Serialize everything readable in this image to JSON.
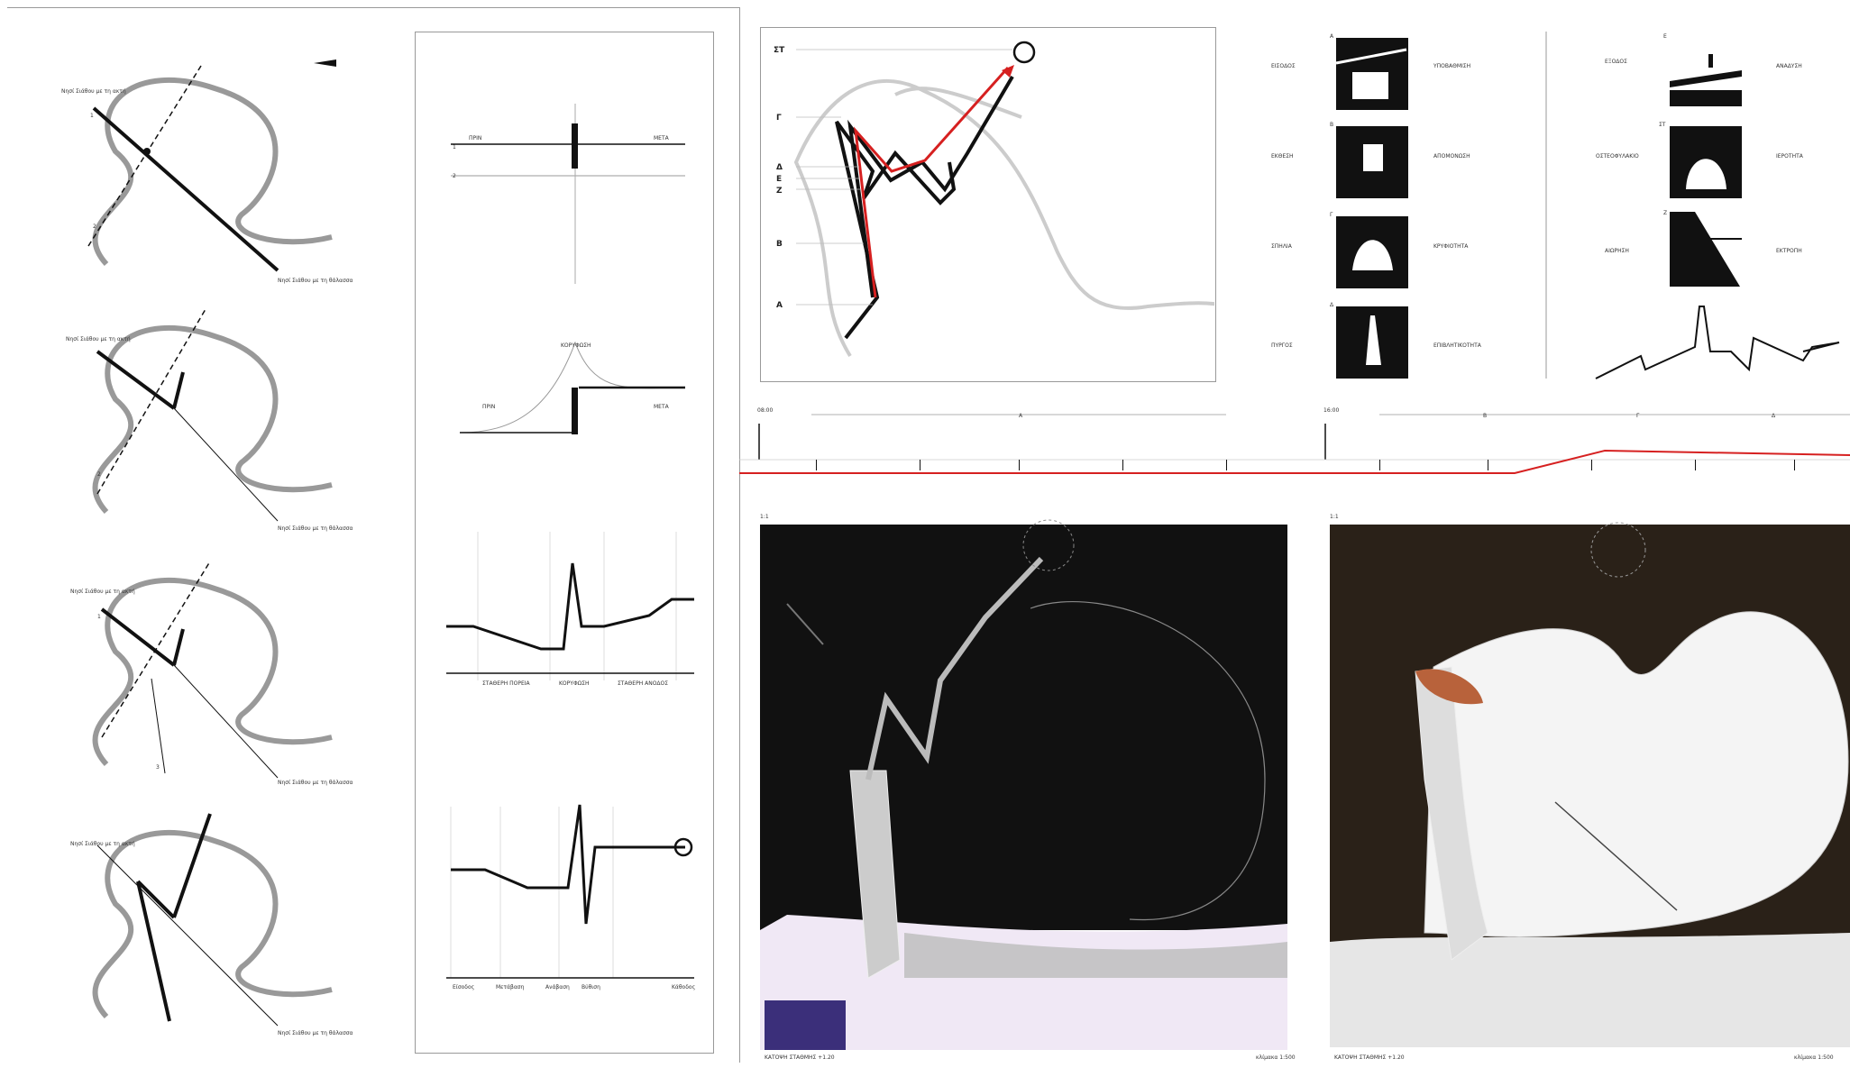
{
  "route_diagram": {
    "stations": [
      "ΣΤ",
      "Γ",
      "Δ",
      "Ε",
      "Ζ",
      "Β",
      "Α"
    ],
    "colors": {
      "route": "#d62020",
      "path": "#111111",
      "terrain": "#cccccc"
    }
  },
  "left_panels": {
    "start_caption": "Νησί Σιάθου με τη ακτή",
    "end_caption": "Νησί Σιάθου με τη θάλασσα",
    "axis_1": "1",
    "axis_2": "2",
    "axis_3": "3"
  },
  "section_diagrams": {
    "top": {
      "before": "ΠΡΙΝ",
      "after": "ΜΕΤΑ"
    },
    "peak": {
      "peak_label": "ΚΟΡΥΦΩΣΗ",
      "before": "ΠΡΙΝ",
      "after": "ΜΕΤΑ"
    },
    "wave": {
      "segments": [
        "ΣΤΑΘΕΡΗ ΠΟΡΕΙΑ",
        "ΚΟΡΥΦΩΣΗ",
        "ΣΤΑΘΕΡΗ ΑΝΟΔΟΣ"
      ]
    },
    "timeline": {
      "ticks": [
        "Είσοδος",
        "Μετάβαση",
        "Ανάβαση",
        "Βύθιση",
        "Κάθοδος"
      ]
    }
  },
  "space_types": {
    "left": [
      {
        "code": "Α",
        "left_label": "ΕΙΣΟΔΟΣ",
        "right_label": "ΥΠΟΒΑΘΜΙΣΗ"
      },
      {
        "code": "Β",
        "left_label": "ΕΚΘΕΣΗ",
        "right_label": "ΑΠΟΜΟΝΩΣΗ"
      },
      {
        "code": "Γ",
        "left_label": "ΣΠΗΛΙΑ",
        "right_label": "ΚΡΥΦΙΟΤΗΤΑ"
      },
      {
        "code": "Δ",
        "left_label": "ΠΥΡΓΟΣ",
        "right_label": "ΕΠΙΒΛΗΤΙΚΟΤΗΤΑ"
      }
    ],
    "right": [
      {
        "code": "Ε",
        "left_label": "ΕΞΟΔΟΣ",
        "right_label": "ΑΝΑΔΥΣΗ"
      },
      {
        "code": "ΣΤ",
        "left_label": "ΟΣΤΕΟΦΥΛΑΚΙΟ",
        "right_label": "ΙΕΡΟΤΗΤΑ"
      },
      {
        "code": "Ζ",
        "left_label": "ΑΙΩΡΗΣΗ",
        "right_label": "ΕΚΤΡΟΠΗ"
      }
    ]
  },
  "timeline_strip": {
    "left_start": "08:00",
    "right_start": "16:00",
    "left_markers": [
      "Α"
    ],
    "right_markers": [
      "Β",
      "Γ",
      "Δ"
    ]
  },
  "plans": {
    "left_caption": "ΚΑΤΟΨΗ ΣΤΑΘΜΗΣ +1.20",
    "right_caption": "ΚΑΤΟΨΗ ΣΤΑΘΜΗΣ +1.20",
    "left_index": "1:1",
    "right_index": "1:1",
    "left_scale": "κλίμακα 1:500",
    "right_scale": "κλίμακα 1:500"
  }
}
